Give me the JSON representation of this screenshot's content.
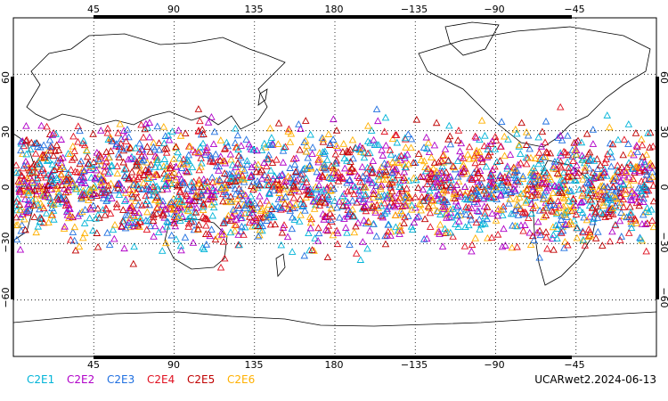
{
  "map": {
    "projection": "equirectangular",
    "central_longitude": 180,
    "lat_range": [
      -90,
      90
    ],
    "grid": "dotted",
    "top_lon_labels": [
      "45",
      "90",
      "135",
      "180",
      "−135",
      "−90",
      "−45"
    ],
    "bottom_lon_labels": [
      "45",
      "90",
      "135",
      "180",
      "−135",
      "−90",
      "−45"
    ],
    "left_lat_labels": [
      "60",
      "30",
      "0",
      "−30",
      "−60"
    ],
    "right_lat_labels": [
      "60",
      "30",
      "0",
      "−30",
      "−60"
    ]
  },
  "legend": [
    {
      "label": "C2E1",
      "color": "#00b4d8"
    },
    {
      "label": "C2E2",
      "color": "#b000c8"
    },
    {
      "label": "C2E3",
      "color": "#1f6fe0"
    },
    {
      "label": "C2E4",
      "color": "#e01020"
    },
    {
      "label": "C2E5",
      "color": "#c00000"
    },
    {
      "label": "C2E6",
      "color": "#ffb000"
    }
  ],
  "footer": {
    "product_label": "UCARwet2.2024-06-13"
  },
  "chart_data": {
    "type": "scatter",
    "marker": "open-triangle",
    "series_labels": [
      "C2E1",
      "C2E2",
      "C2E3",
      "C2E4",
      "C2E5",
      "C2E6"
    ],
    "lat_band_observed": [
      -45,
      45
    ]
  }
}
